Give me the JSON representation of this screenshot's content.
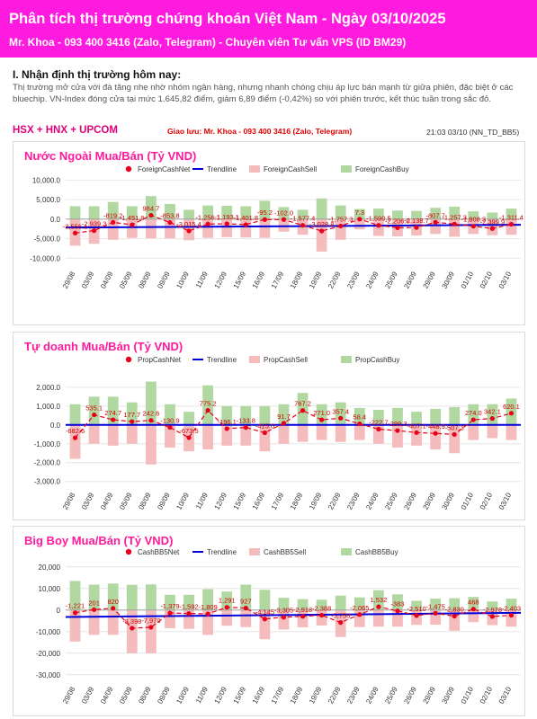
{
  "header": {
    "title": "Phân tích thị trường chứng khoán Việt Nam  -  Ngày 03/10/2025",
    "subtitle": "Mr. Khoa - 093 400 3416 (Zalo, Telegram) - Chuyên viên Tư vấn VPS (ID BM29)",
    "background": "#ff1ae0"
  },
  "section": {
    "heading": "I. Nhận định thị trường hôm nay:",
    "summary": "Thị trường mở cửa với đà tăng nhẹ nhờ nhóm ngân hàng, nhưng nhanh chóng chịu áp lực bán mạnh từ giữa phiên, đặc biệt ở các bluechip. VN-Index đóng cửa tại mức 1.645,82 điểm, giảm 6,89 điểm (-0,42%) so với phiên trước, kết thúc tuần trong sắc đỏ."
  },
  "info_bar": {
    "market": "HSX + HNX + UPCOM",
    "contact": "Giao lưu: Mr. Khoa - 093 400 3416 (Zalo, Telegram)",
    "timestamp": "21:03 03/10 (NN_TD_BB5)"
  },
  "colors": {
    "net": "#e8001c",
    "trend": "#0000dd",
    "sell": "#f4bcbc",
    "buy": "#b2d8a2",
    "title_pink": "#ff1a9c",
    "label_red": "#cc0000"
  },
  "chart_data": [
    {
      "type": "bar",
      "title": "Nước Ngoài Mua/Bán (Tỷ VND)",
      "legend": [
        "ForeignCashNet",
        "Trendline",
        "ForeignCashSell",
        "ForeignCashBuy"
      ],
      "categories": [
        "29/08",
        "03/09",
        "04/09",
        "05/09",
        "08/09",
        "09/09",
        "10/09",
        "11/09",
        "12/09",
        "15/09",
        "16/09",
        "17/09",
        "18/09",
        "19/09",
        "22/09",
        "23/09",
        "24/09",
        "25/09",
        "26/09",
        "29/09",
        "30/09",
        "01/10",
        "02/10",
        "03/10"
      ],
      "series": [
        {
          "name": "ForeignCashNet",
          "values": [
            -3556.1,
            -2939.3,
            -819.2,
            -1451.9,
            984.7,
            -853.8,
            -3015.4,
            -1256.1,
            -1193.1,
            -1401.8,
            -95.2,
            -102.0,
            -1577.4,
            -3028.8,
            -1757.3,
            7.3,
            -1590.5,
            -2206.0,
            -2138.7,
            -807.7,
            -1257.3,
            -1808.3,
            -2399.9,
            -1311.4
          ]
        },
        {
          "name": "ForeignCashSell",
          "values": [
            -6800,
            -6300,
            -5300,
            -4800,
            -4900,
            -4900,
            -5400,
            -4800,
            -4600,
            -4700,
            -4800,
            -3200,
            -4000,
            -8300,
            -5300,
            -2600,
            -4300,
            -4400,
            -4200,
            -3800,
            -4500,
            -3800,
            -4100,
            -4000
          ]
        },
        {
          "name": "ForeignCashBuy",
          "values": [
            3300,
            3300,
            4400,
            3300,
            5900,
            3900,
            2400,
            3500,
            3400,
            3300,
            4700,
            3100,
            2400,
            5300,
            3500,
            2600,
            2700,
            2200,
            2100,
            2900,
            3200,
            2000,
            1700,
            2700
          ]
        }
      ],
      "trendline": [
        -2150,
        -1450
      ],
      "yticks": [
        10000,
        5000,
        0,
        -5000,
        -10000
      ],
      "ytick_labels": [
        "10,000.0",
        "5,000.0",
        "0.0",
        "-5,000.0",
        "-10,000.0"
      ],
      "net_labels": [
        "-3,556.1",
        "-2,939.3",
        "-819.2",
        "-1,451.9",
        "984.7",
        "-853.8",
        "-3,015.4",
        "-1,256.1",
        "-1,193.1",
        "-1,401.8",
        "-95.2",
        "-102.0",
        "-1,577.4",
        "-3,028.8",
        "-1,757.3",
        "7.3",
        "-1,590.5",
        "-2,206.0",
        "-2,138.7",
        "-807.7",
        "-1,257.3",
        "-1,808.3",
        "-2,399.9",
        "-1,311.4"
      ],
      "ylim": [
        -12000,
        11000
      ]
    },
    {
      "type": "bar",
      "title": "Tự doanh Mua/Bán (Tỷ VND)",
      "legend": [
        "PropCashNet",
        "Trendline",
        "PropCashSell",
        "PropCashBuy"
      ],
      "categories": [
        "29/08",
        "03/09",
        "04/09",
        "05/09",
        "08/09",
        "09/09",
        "10/09",
        "11/09",
        "12/09",
        "15/09",
        "16/09",
        "17/09",
        "18/09",
        "19/09",
        "22/09",
        "23/09",
        "24/09",
        "25/09",
        "26/09",
        "29/09",
        "30/09",
        "01/10",
        "02/10",
        "03/10"
      ],
      "series": [
        {
          "name": "PropCashNet",
          "values": [
            -682.6,
            535.1,
            274.7,
            177.7,
            242.6,
            -130.9,
            -673.5,
            775.2,
            -196.1,
            -133.8,
            -415.0,
            91.7,
            767.2,
            271.0,
            357.4,
            58.4,
            -222.7,
            -299.3,
            -407.1,
            -448.9,
            -507.3,
            274.0,
            342.1,
            620.1
          ]
        },
        {
          "name": "PropCashSell",
          "values": [
            -1800,
            -1000,
            -1100,
            -1000,
            -2100,
            -1200,
            -1400,
            -1300,
            -1100,
            -1100,
            -1400,
            -1000,
            -900,
            -800,
            -900,
            -800,
            -1000,
            -1200,
            -1100,
            -1300,
            -1500,
            -800,
            -700,
            -800
          ]
        },
        {
          "name": "PropCashBuy",
          "values": [
            1100,
            1500,
            1500,
            1200,
            2300,
            1100,
            700,
            2100,
            1000,
            1000,
            1000,
            1100,
            1700,
            1100,
            1200,
            900,
            800,
            900,
            700,
            850,
            950,
            1100,
            1100,
            1400
          ]
        }
      ],
      "trendline": [
        0,
        0
      ],
      "yticks": [
        2000,
        1000,
        0,
        -1000,
        -2000,
        -3000
      ],
      "ytick_labels": [
        "2,000.0",
        "1,000.0",
        "0.0",
        "-1,000.0",
        "-2,000.0",
        "-3,000.0"
      ],
      "net_labels": [
        "-682.6",
        "535.1",
        "274.7",
        "177.7",
        "242.6",
        "-130.9",
        "-673.5",
        "775.2",
        "-196.1",
        "-133.8",
        "-415.0",
        "91.7",
        "767.2",
        "271.0",
        "357.4",
        "58.4",
        "-222.7",
        "-299.3",
        "-407.1",
        "-448.9",
        "-507.3",
        "274.0",
        "342.1",
        "620.1"
      ],
      "ylim": [
        -3300,
        2900
      ]
    },
    {
      "type": "bar",
      "title": "Big Boy Mua/Bán (Tỷ VND)",
      "legend": [
        "CashBB5Net",
        "Trendline",
        "CashBB5Sell",
        "CashBB5Buy"
      ],
      "categories": [
        "29/08",
        "03/09",
        "04/09",
        "05/09",
        "08/09",
        "09/09",
        "10/09",
        "11/09",
        "12/09",
        "15/09",
        "16/09",
        "17/09",
        "18/09",
        "19/09",
        "22/09",
        "23/09",
        "24/09",
        "25/09",
        "26/09",
        "29/09",
        "30/09",
        "01/10",
        "02/10",
        "03/10"
      ],
      "series": [
        {
          "name": "CashBB5Net",
          "values": [
            -1221,
            201,
            820,
            -8398,
            -7970,
            -1379,
            -1592,
            -1809,
            1291,
            927,
            -4145,
            -3305,
            -2918,
            -2388,
            -5758,
            -2065,
            1532,
            -383,
            -2510,
            -1475,
            -2830,
            468,
            -2978,
            -2403
          ]
        },
        {
          "name": "CashBB5Sell",
          "values": [
            -14600,
            -11500,
            -11500,
            -20000,
            -20000,
            -8400,
            -8700,
            -11500,
            -7300,
            -7900,
            -13500,
            -9000,
            -8000,
            -7200,
            -12500,
            -7900,
            -7700,
            -7700,
            -6900,
            -6800,
            -9600,
            -5600,
            -7000,
            -7700
          ]
        },
        {
          "name": "CashBB5Buy",
          "values": [
            13500,
            11800,
            12300,
            11700,
            11900,
            7100,
            7100,
            9700,
            8600,
            11800,
            9400,
            5700,
            5100,
            4800,
            6700,
            5900,
            9200,
            7300,
            4300,
            5300,
            5500,
            6100,
            4000,
            5300
          ]
        }
      ],
      "trendline": [
        -3200,
        -1300
      ],
      "yticks": [
        20000,
        10000,
        0,
        -10000,
        -20000,
        -30000
      ],
      "ytick_labels": [
        "20,000",
        "10,000",
        "0",
        "-10,000",
        "-20,000",
        "-30,000"
      ],
      "net_labels": [
        "-1,221",
        "201",
        "820",
        "-8,398",
        "-7,970",
        "-1,379",
        "-1,592",
        "-1,809",
        "1,291",
        "927",
        "-4,145",
        "-3,305",
        "-2,918",
        "-2,388",
        "-5,758",
        "-2,065",
        "1,532",
        "-383",
        "-2,510",
        "-1,475",
        "-2,830",
        "468",
        "-2,978",
        "-2,403"
      ],
      "ylim": [
        -33000,
        22000
      ]
    }
  ]
}
